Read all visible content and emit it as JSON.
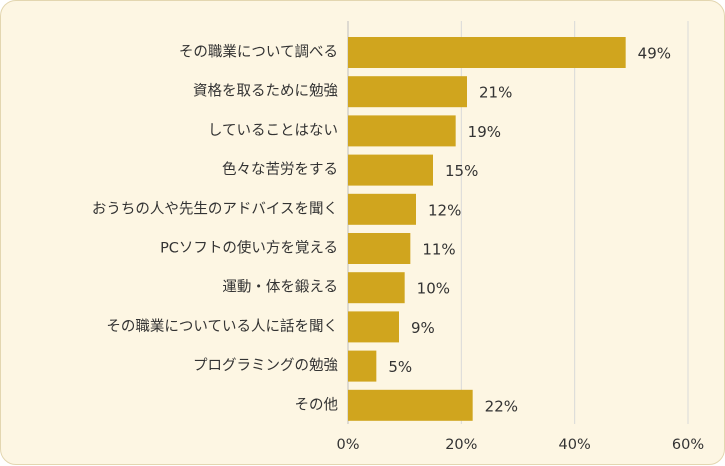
{
  "chart_data": {
    "type": "bar",
    "orientation": "horizontal",
    "categories": [
      "その職業について調べる",
      "資格を取るために勉強",
      "していることはない",
      "色々な苦労をする",
      "おうちの人や先生のアドバイスを聞く",
      "PCソフトの使い方を覚える",
      "運動・体を鍛える",
      "その職業についている人に話を聞く",
      "プログラミングの勉強",
      "その他"
    ],
    "values": [
      49,
      21,
      19,
      15,
      12,
      11,
      10,
      9,
      5,
      22
    ],
    "value_labels": [
      "49%",
      "21%",
      "19%",
      "15%",
      "12%",
      "11%",
      "10%",
      "9%",
      "5%",
      "22%"
    ],
    "xlim": [
      0,
      60
    ],
    "xticks": [
      0,
      20,
      40,
      60
    ],
    "xtick_labels": [
      "0%",
      "20%",
      "40%",
      "60%"
    ],
    "grid": "vertical",
    "bar_color": "#d0a51e",
    "grid_color": "#d9d9d9",
    "background_color": "#fdf6e3"
  }
}
